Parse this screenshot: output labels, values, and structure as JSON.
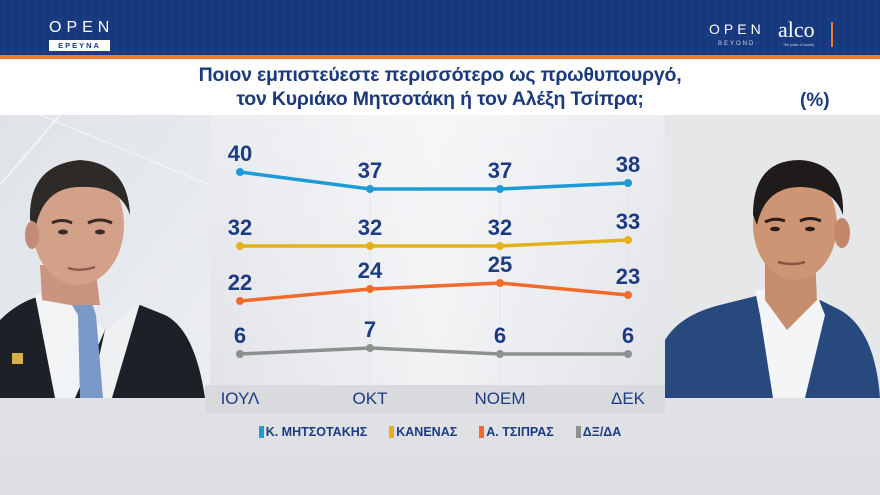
{
  "header": {
    "left_logo": {
      "brand": "OPEN",
      "sub": "ΕΡΕΥΝΑ"
    },
    "right_logos": {
      "brand": "OPEN",
      "brand_sub": "BEYOND",
      "pollster": "alco",
      "pollster_tagline": "The pulse of society"
    },
    "colors": {
      "band": "#17397e",
      "stripe": "#f07a2e"
    }
  },
  "title": {
    "line1": "Ποιον εμπιστεύεστε περισσότερο ως πρωθυπουργό,",
    "line2": "τον Κυριάκο Μητσοτάκη ή τον Αλέξη Τσίπρα;",
    "unit": "(%)"
  },
  "photos": {
    "left": {
      "subject": "Κ. Μητσοτάκης"
    },
    "right": {
      "subject": "Α. Τσίπρας"
    }
  },
  "chart_data": {
    "type": "line",
    "title": "Ποιον εμπιστεύεστε περισσότερο ως πρωθυπουργό, τον Κυριάκο Μητσοτάκη ή τον Αλέξη Τσίπρα;",
    "unit": "%",
    "categories": [
      "ΙΟΥΛ",
      "ΟΚΤ",
      "ΝΟΕΜ",
      "ΔΕΚ"
    ],
    "series": [
      {
        "name": "Κ. ΜΗΤΣΟΤΑΚΗΣ",
        "color": "#1e9ad6",
        "values": [
          40,
          37,
          37,
          38
        ]
      },
      {
        "name": "ΚΑΝΕΝΑΣ",
        "color": "#e3b21a",
        "values": [
          32,
          32,
          32,
          33
        ]
      },
      {
        "name": "Α. ΤΣΙΠΡΑΣ",
        "color": "#f26a2c",
        "values": [
          22,
          24,
          25,
          23
        ]
      },
      {
        "name": "ΔΞ/ΔΑ",
        "color": "#8c9190",
        "values": [
          6,
          7,
          6,
          6
        ]
      }
    ],
    "xlabel": "",
    "ylabel": "",
    "grid": false,
    "data_labels": true,
    "legend_position": "bottom"
  },
  "layout": {
    "x": [
      240,
      370,
      500,
      628
    ],
    "y": [
      [
        172,
        189,
        189,
        183
      ],
      [
        246,
        246,
        246,
        240
      ],
      [
        301,
        289,
        283,
        295
      ],
      [
        354,
        348,
        354,
        354
      ]
    ]
  }
}
